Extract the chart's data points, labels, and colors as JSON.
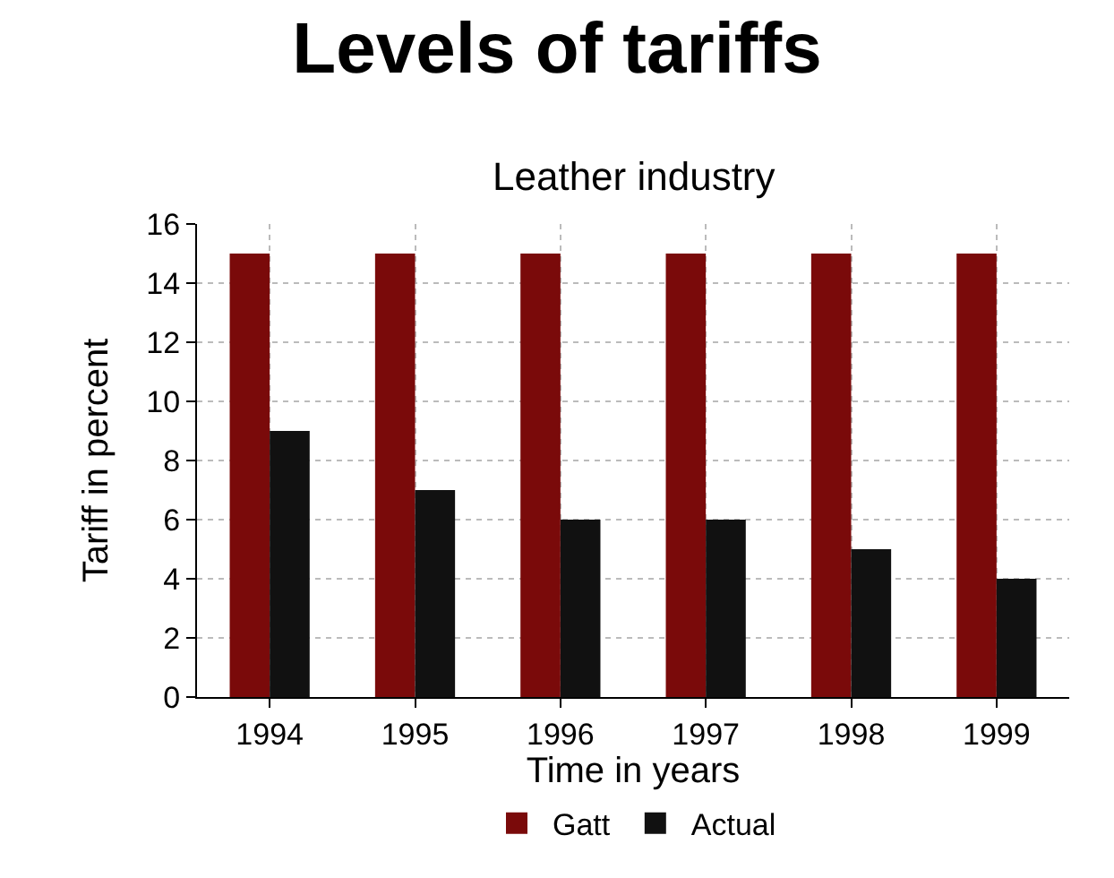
{
  "chart_data": {
    "type": "bar",
    "title": "Levels of tariffs",
    "subtitle": "Leather industry",
    "xlabel": "Time in years",
    "ylabel": "Tariff in percent",
    "categories": [
      "1994",
      "1995",
      "1996",
      "1997",
      "1998",
      "1999"
    ],
    "series": [
      {
        "name": "Gatt",
        "color": "#7a0a0a",
        "values": [
          15,
          15,
          15,
          15,
          15,
          15
        ]
      },
      {
        "name": "Actual",
        "color": "#111111",
        "values": [
          9,
          7,
          6,
          6,
          5,
          4
        ]
      }
    ],
    "ylim": [
      0,
      16
    ],
    "yticks": [
      0,
      2,
      4,
      6,
      8,
      10,
      12,
      14,
      16
    ],
    "grid": true,
    "legend": "bottom"
  }
}
